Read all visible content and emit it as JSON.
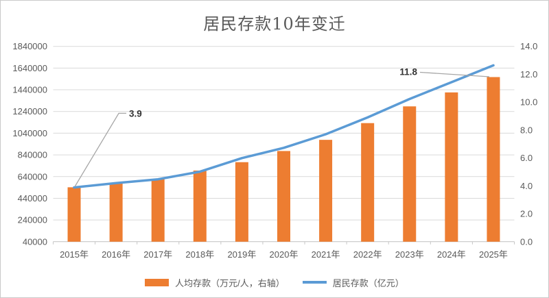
{
  "chart_data": {
    "type": "bar+line",
    "title": "居民存款10年变迁",
    "categories": [
      "2015年",
      "2016年",
      "2017年",
      "2018年",
      "2019年",
      "2020年",
      "2021年",
      "2022年",
      "2023年",
      "2024年",
      "2025年"
    ],
    "series": [
      {
        "name": "人均存款（万元/人，右轴）",
        "type": "bar",
        "axis": "right",
        "color": "#ED7D31",
        "values": [
          3.9,
          4.2,
          4.5,
          5.1,
          5.7,
          6.5,
          7.3,
          8.5,
          9.7,
          10.7,
          11.8
        ]
      },
      {
        "name": "居民存款（亿元）",
        "type": "line",
        "axis": "left",
        "color": "#5B9BD5",
        "values": [
          540000,
          580000,
          615000,
          685000,
          810000,
          905000,
          1030000,
          1185000,
          1355000,
          1510000,
          1665000
        ]
      }
    ],
    "left_axis": {
      "min": 40000,
      "max": 1840000,
      "step": 200000,
      "ticks": [
        1840000,
        1640000,
        1440000,
        1240000,
        1040000,
        840000,
        640000,
        440000,
        240000,
        40000
      ]
    },
    "right_axis": {
      "min": 0.0,
      "max": 14.0,
      "step": 2.0,
      "decimals": 1,
      "ticks": [
        14.0,
        12.0,
        10.0,
        8.0,
        6.0,
        4.0,
        2.0,
        0.0
      ]
    },
    "annotations": [
      {
        "text": "3.9",
        "category": "2015年",
        "index": 0,
        "series": "人均存款（万元/人，右轴）"
      },
      {
        "text": "11.8",
        "category": "2025年",
        "index": 10,
        "series": "人均存款（万元/人，右轴）"
      }
    ],
    "legend_position": "bottom",
    "grid": "horizontal",
    "colors": {
      "bar": "#ED7D31",
      "line": "#5B9BD5",
      "gridline": "#D9D9D9",
      "axis_line": "#BFBFBF",
      "axis_text": "#595959",
      "annotation_text": "#333333",
      "leader_line": "#A6A6A6"
    }
  }
}
